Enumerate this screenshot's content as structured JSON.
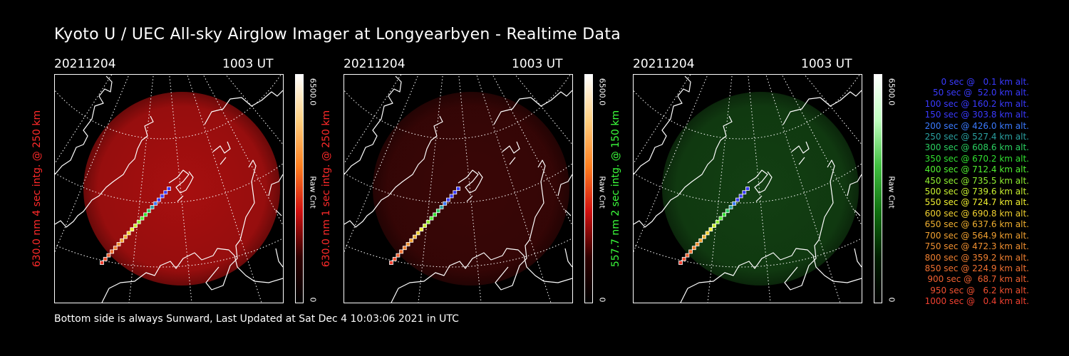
{
  "title": "Kyoto U / UEC All-sky Airglow Imager at Longyearbyen - Realtime Data",
  "footer": "Bottom side is always Sunward, Last Updated at Sat Dec  4 10:03:06 2021 in UTC",
  "colors": {
    "red_channel": "#ff2a2a",
    "green_channel": "#3cff3c",
    "red_glow": "#b01010",
    "dim_red_glow": "#3a0606",
    "green_glow": "#123f12"
  },
  "chart_data": [
    {
      "type": "heatmap",
      "title": "",
      "date": "20211204",
      "time": "1003 UT",
      "ylabel": "630.0 nm 4 sec intg. @ 250 km",
      "label_color": "red",
      "colorbar": {
        "max_label": "6500.0",
        "min_label": "0",
        "unit": "Raw Cnt",
        "colormap": "black-red-orange-white"
      }
    },
    {
      "type": "heatmap",
      "title": "",
      "date": "20211204",
      "time": "1003 UT",
      "ylabel": "630.0 nm 1 sec intg. @ 250 km",
      "label_color": "red",
      "colorbar": {
        "max_label": "6500.0",
        "min_label": "0",
        "unit": "Raw Cnt",
        "colormap": "black-red-orange-white"
      }
    },
    {
      "type": "heatmap",
      "title": "",
      "date": "20211204",
      "time": "1003 UT",
      "ylabel": "557.7 nm 2 sec intg. @ 150 km",
      "label_color": "green",
      "colorbar": {
        "max_label": "6500.0",
        "min_label": "0",
        "unit": "Raw Cnt",
        "colormap": "black-green-white"
      }
    }
  ],
  "trajectory_legend": [
    {
      "text": "0 sec @   0.1 km alt.",
      "color": "#3a3aff"
    },
    {
      "text": "50 sec @  52.0 km alt.",
      "color": "#3a3aff"
    },
    {
      "text": "100 sec @ 160.2 km alt.",
      "color": "#3a3aff"
    },
    {
      "text": "150 sec @ 303.8 km alt.",
      "color": "#3a3aff"
    },
    {
      "text": "200 sec @ 426.0 km alt.",
      "color": "#3a7aff"
    },
    {
      "text": "250 sec @ 527.4 km alt.",
      "color": "#2aa0a0"
    },
    {
      "text": "300 sec @ 608.6 km alt.",
      "color": "#2ad060"
    },
    {
      "text": "350 sec @ 670.2 km alt.",
      "color": "#30e030"
    },
    {
      "text": "400 sec @ 712.4 km alt.",
      "color": "#50f030"
    },
    {
      "text": "450 sec @ 735.5 km alt.",
      "color": "#90f030"
    },
    {
      "text": "500 sec @ 739.6 km alt.",
      "color": "#c8f030"
    },
    {
      "text": "550 sec @ 724.7 km alt.",
      "color": "#f0f030"
    },
    {
      "text": "600 sec @ 690.8 km alt.",
      "color": "#f0d030"
    },
    {
      "text": "650 sec @ 637.6 km alt.",
      "color": "#f0b030"
    },
    {
      "text": "700 sec @ 564.9 km alt.",
      "color": "#f0a030"
    },
    {
      "text": "750 sec @ 472.3 km alt.",
      "color": "#f09030"
    },
    {
      "text": "800 sec @ 359.2 km alt.",
      "color": "#f08030"
    },
    {
      "text": "850 sec @ 224.9 km alt.",
      "color": "#f07030"
    },
    {
      "text": "900 sec @  68.7 km alt.",
      "color": "#f06030"
    },
    {
      "text": "950 sec @   6.2 km alt.",
      "color": "#f05030"
    },
    {
      "text": "1000 sec @   0.4 km alt.",
      "color": "#f04030"
    }
  ]
}
